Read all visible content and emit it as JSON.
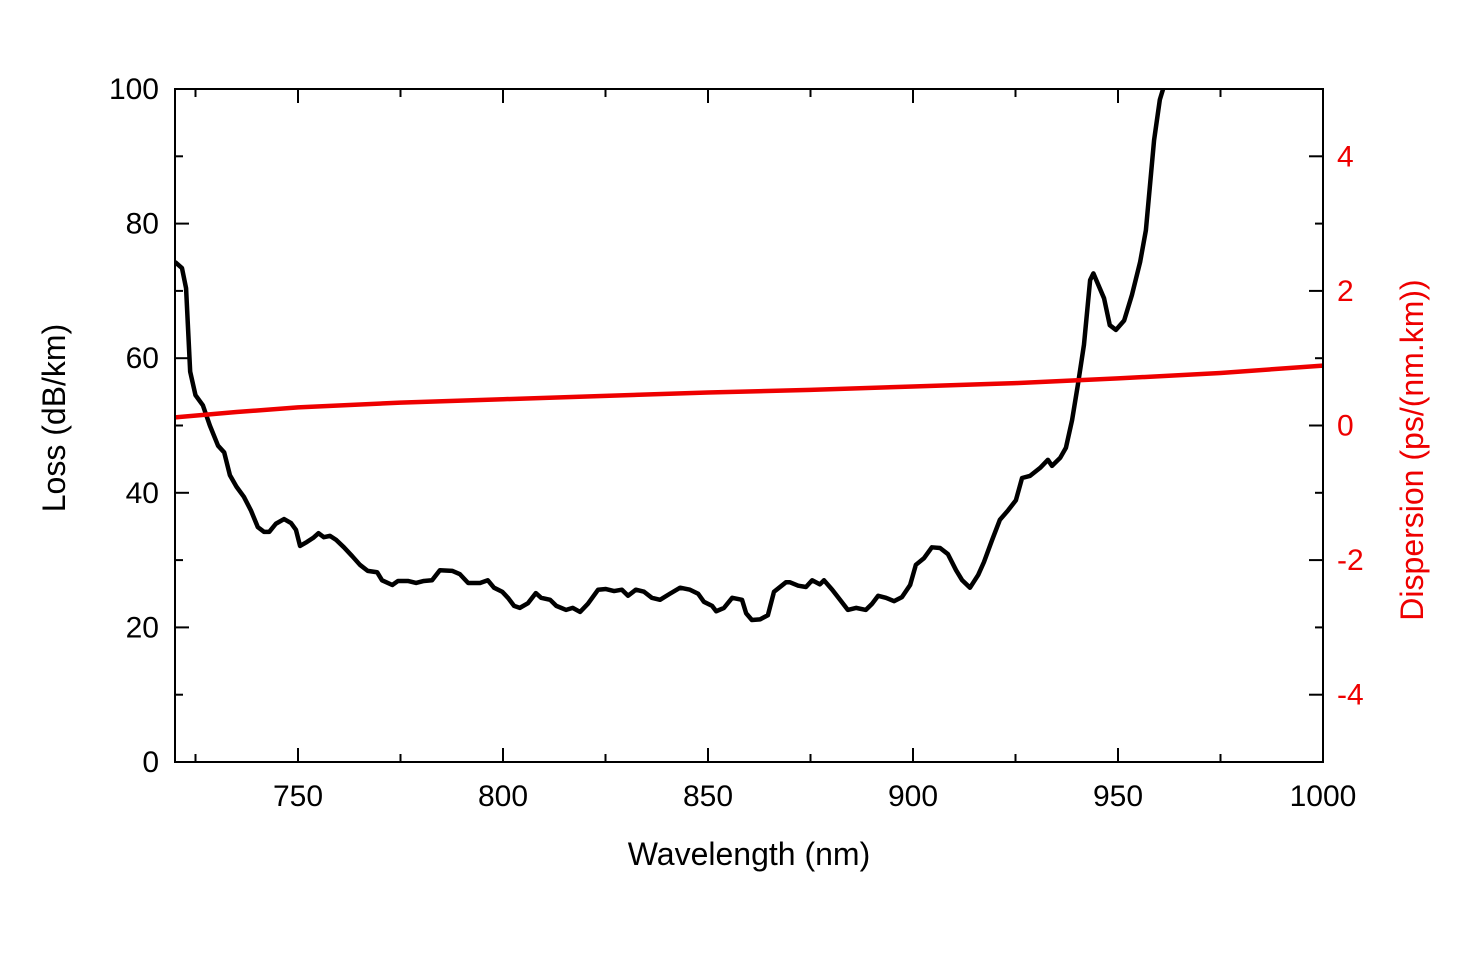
{
  "chart_data": {
    "type": "line",
    "xlabel": "Wavelength (nm)",
    "ylabel": "Loss (dB/km)",
    "y2label": "Dispersion (ps/(nm.km))",
    "xlim": [
      720,
      1000
    ],
    "ylim": [
      0,
      100
    ],
    "y2lim": [
      -5,
      5
    ],
    "xticks": [
      750,
      800,
      850,
      900,
      950,
      1000
    ],
    "yticks": [
      0,
      20,
      40,
      60,
      80,
      100
    ],
    "y2ticks": [
      -4,
      -2,
      0,
      2,
      4
    ],
    "grid": false,
    "colors": {
      "loss": "#000000",
      "dispersion": "#ee0000",
      "right_axis": "#ee0000"
    },
    "series": [
      {
        "axis": "left",
        "x": [
          720,
          721.7,
          722.7,
          723.7,
          725,
          726.8,
          728.5,
          730.5,
          732,
          733.4,
          735,
          736.8,
          738.5,
          740.2,
          741.7,
          743,
          744.6,
          746.6,
          748.3,
          749.5,
          750.5,
          752.2,
          753.7,
          755,
          756.3,
          757.8,
          759.3,
          761.2,
          763.2,
          765.1,
          767,
          769.3,
          770.5,
          773,
          774.4,
          776.8,
          778.8,
          780.7,
          782.7,
          784.6,
          787.6,
          789.5,
          791.5,
          794.4,
          796.3,
          797.8,
          799.8,
          801.2,
          802.7,
          804.1,
          806.1,
          808,
          809.3,
          811.5,
          813,
          815.4,
          817,
          818.8,
          820.7,
          823.2,
          825.1,
          827.1,
          829,
          830.5,
          832.4,
          834.4,
          836.3,
          838.3,
          840.7,
          843.2,
          845.6,
          847.6,
          849,
          851,
          852,
          853.9,
          855.9,
          858.3,
          859.3,
          860.7,
          862.7,
          864.6,
          866.1,
          869,
          870,
          872,
          873.9,
          875.4,
          877.3,
          878.3,
          880.3,
          882.2,
          884.1,
          886.1,
          888.5,
          890,
          891.5,
          893.4,
          895.4,
          897.3,
          899.3,
          900.7,
          902.7,
          904.6,
          906.6,
          908.5,
          910.5,
          912,
          913.9,
          915.9,
          917.3,
          919.3,
          921.2,
          923.2,
          925.1,
          926.6,
          928.5,
          931,
          932.9,
          933.9,
          935.9,
          937.3,
          938.8,
          940.2,
          941.7,
          943.2,
          944,
          946.6,
          948,
          949.5,
          951.5,
          953.4,
          955.4,
          956.8,
          958.8,
          960.2,
          961
        ],
        "y": [
          74.3,
          73.4,
          70.4,
          58,
          54.5,
          53,
          50,
          47,
          46,
          42.6,
          40.9,
          39.4,
          37.4,
          34.9,
          34.2,
          34.2,
          35.4,
          36.1,
          35.5,
          34.5,
          32.1,
          32.7,
          33.3,
          34,
          33.4,
          33.6,
          33,
          31.9,
          30.6,
          29.3,
          28.4,
          28.2,
          27,
          26.3,
          26.9,
          26.9,
          26.6,
          26.9,
          27,
          28.5,
          28.4,
          27.9,
          26.6,
          26.6,
          27,
          25.9,
          25.3,
          24.4,
          23.2,
          22.9,
          23.6,
          25.1,
          24.4,
          24.1,
          23.2,
          22.6,
          22.9,
          22.3,
          23.5,
          25.6,
          25.7,
          25.4,
          25.6,
          24.7,
          25.6,
          25.3,
          24.4,
          24.1,
          25,
          25.9,
          25.6,
          25,
          23.8,
          23.2,
          22.4,
          22.9,
          24.4,
          24.1,
          22.1,
          21.1,
          21.2,
          21.8,
          25.3,
          26.7,
          26.7,
          26.2,
          26,
          27,
          26.4,
          27,
          25.6,
          24.1,
          22.6,
          22.9,
          22.6,
          23.5,
          24.7,
          24.4,
          23.9,
          24.5,
          26.3,
          29.3,
          30.3,
          31.9,
          31.8,
          30.9,
          28.5,
          27,
          25.9,
          27.8,
          29.7,
          33,
          36,
          37.4,
          38.9,
          42.2,
          42.5,
          43.7,
          44.9,
          44,
          45.2,
          46.7,
          50.8,
          56,
          62,
          71.6,
          72.6,
          68.9,
          64.9,
          64.2,
          65.6,
          69.4,
          74.3,
          79,
          92.4,
          98.4,
          100
        ]
      },
      {
        "axis": "right",
        "x": [
          720,
          735,
          750,
          775,
          800,
          825,
          850,
          875,
          900,
          925,
          950,
          975,
          1000
        ],
        "y": [
          0.12,
          0.2,
          0.27,
          0.34,
          0.39,
          0.44,
          0.49,
          0.53,
          0.58,
          0.63,
          0.7,
          0.78,
          0.89
        ]
      }
    ]
  }
}
